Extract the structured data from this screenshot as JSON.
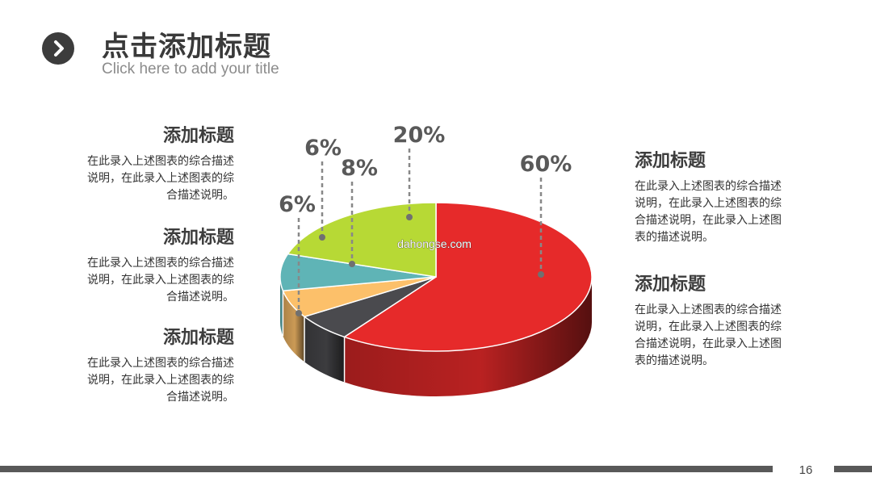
{
  "header": {
    "title": "点击添加标题",
    "subtitle": "Click here to add your title",
    "icon": "chevron-right-icon"
  },
  "blocks_left": [
    {
      "title": "添加标题",
      "desc": "在此录入上述图表的综合描述说明，在此录入上述图表的综合描述说明。"
    },
    {
      "title": "添加标题",
      "desc": "在此录入上述图表的综合描述说明，在此录入上述图表的综合描述说明。"
    },
    {
      "title": "添加标题",
      "desc": "在此录入上述图表的综合描述说明，在此录入上述图表的综合描述说明。"
    }
  ],
  "blocks_right": [
    {
      "title": "添加标题",
      "desc": "在此录入上述图表的综合描述说明，在此录入上述图表的综合描述说明，在此录入上述图表的描述说明。"
    },
    {
      "title": "添加标题",
      "desc": "在此录入上述图表的综合描述说明，在此录入上述图表的综合描述说明，在此录入上述图表的描述说明。"
    }
  ],
  "chart_data": {
    "type": "pie",
    "style": "3d",
    "slices": [
      {
        "value": 60,
        "label": "60%",
        "color": "#e62a2a"
      },
      {
        "value": 6,
        "label": "6%",
        "color": "#4a4a4e"
      },
      {
        "value": 6,
        "label": "6%",
        "color": "#fcc06a"
      },
      {
        "value": 8,
        "label": "8%",
        "color": "#5fb4b6"
      },
      {
        "value": 20,
        "label": "20%",
        "color": "#b7d935"
      }
    ],
    "watermark": "dahongse.com"
  },
  "footer": {
    "page_number": "16"
  }
}
